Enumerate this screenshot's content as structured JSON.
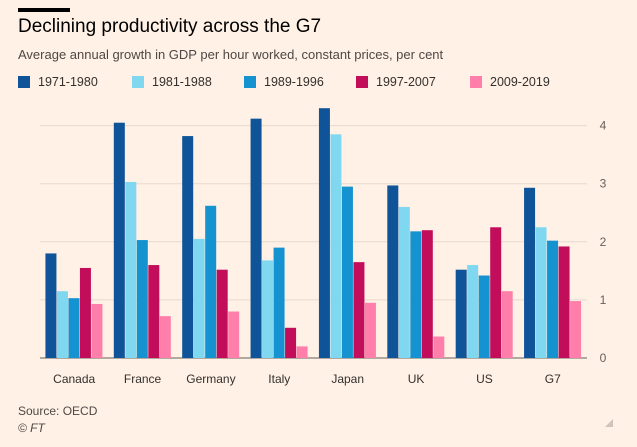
{
  "header": {
    "title": "Declining productivity across the G7",
    "subtitle": "Average annual growth in GDP per hour worked, constant prices, per cent"
  },
  "footer": {
    "source": "Source: OECD",
    "credit": "© FT"
  },
  "colors": {
    "background": "#FFF1E5",
    "grid": "#E6D9CE",
    "series": [
      "#0F5499",
      "#7FD8F0",
      "#1592D0",
      "#C20E5A",
      "#FF7FAA"
    ]
  },
  "chart_data": {
    "type": "bar",
    "title": "Declining productivity across the G7",
    "subtitle": "Average annual growth in GDP per hour worked, constant prices, per cent",
    "categories": [
      "Canada",
      "France",
      "Germany",
      "Italy",
      "Japan",
      "UK",
      "US",
      "G7"
    ],
    "series": [
      {
        "name": "1971-1980",
        "values": [
          1.8,
          4.05,
          3.82,
          4.12,
          4.3,
          2.97,
          1.52,
          2.93
        ]
      },
      {
        "name": "1981-1988",
        "values": [
          1.15,
          3.03,
          2.05,
          1.68,
          3.85,
          2.6,
          1.6,
          2.25
        ]
      },
      {
        "name": "1989-1996",
        "values": [
          1.03,
          2.03,
          2.62,
          1.9,
          2.95,
          2.18,
          1.42,
          2.02
        ]
      },
      {
        "name": "1997-2007",
        "values": [
          1.55,
          1.6,
          1.52,
          0.52,
          1.65,
          2.2,
          2.25,
          1.92
        ]
      },
      {
        "name": "2009-2019",
        "values": [
          0.93,
          0.72,
          0.8,
          0.2,
          0.95,
          0.37,
          1.15,
          0.98
        ]
      }
    ],
    "ylim": [
      0,
      4.2
    ],
    "yticks": [
      0,
      1,
      2,
      3,
      4
    ],
    "grid": true,
    "legend": "top-left",
    "xlabel": "",
    "ylabel": ""
  }
}
